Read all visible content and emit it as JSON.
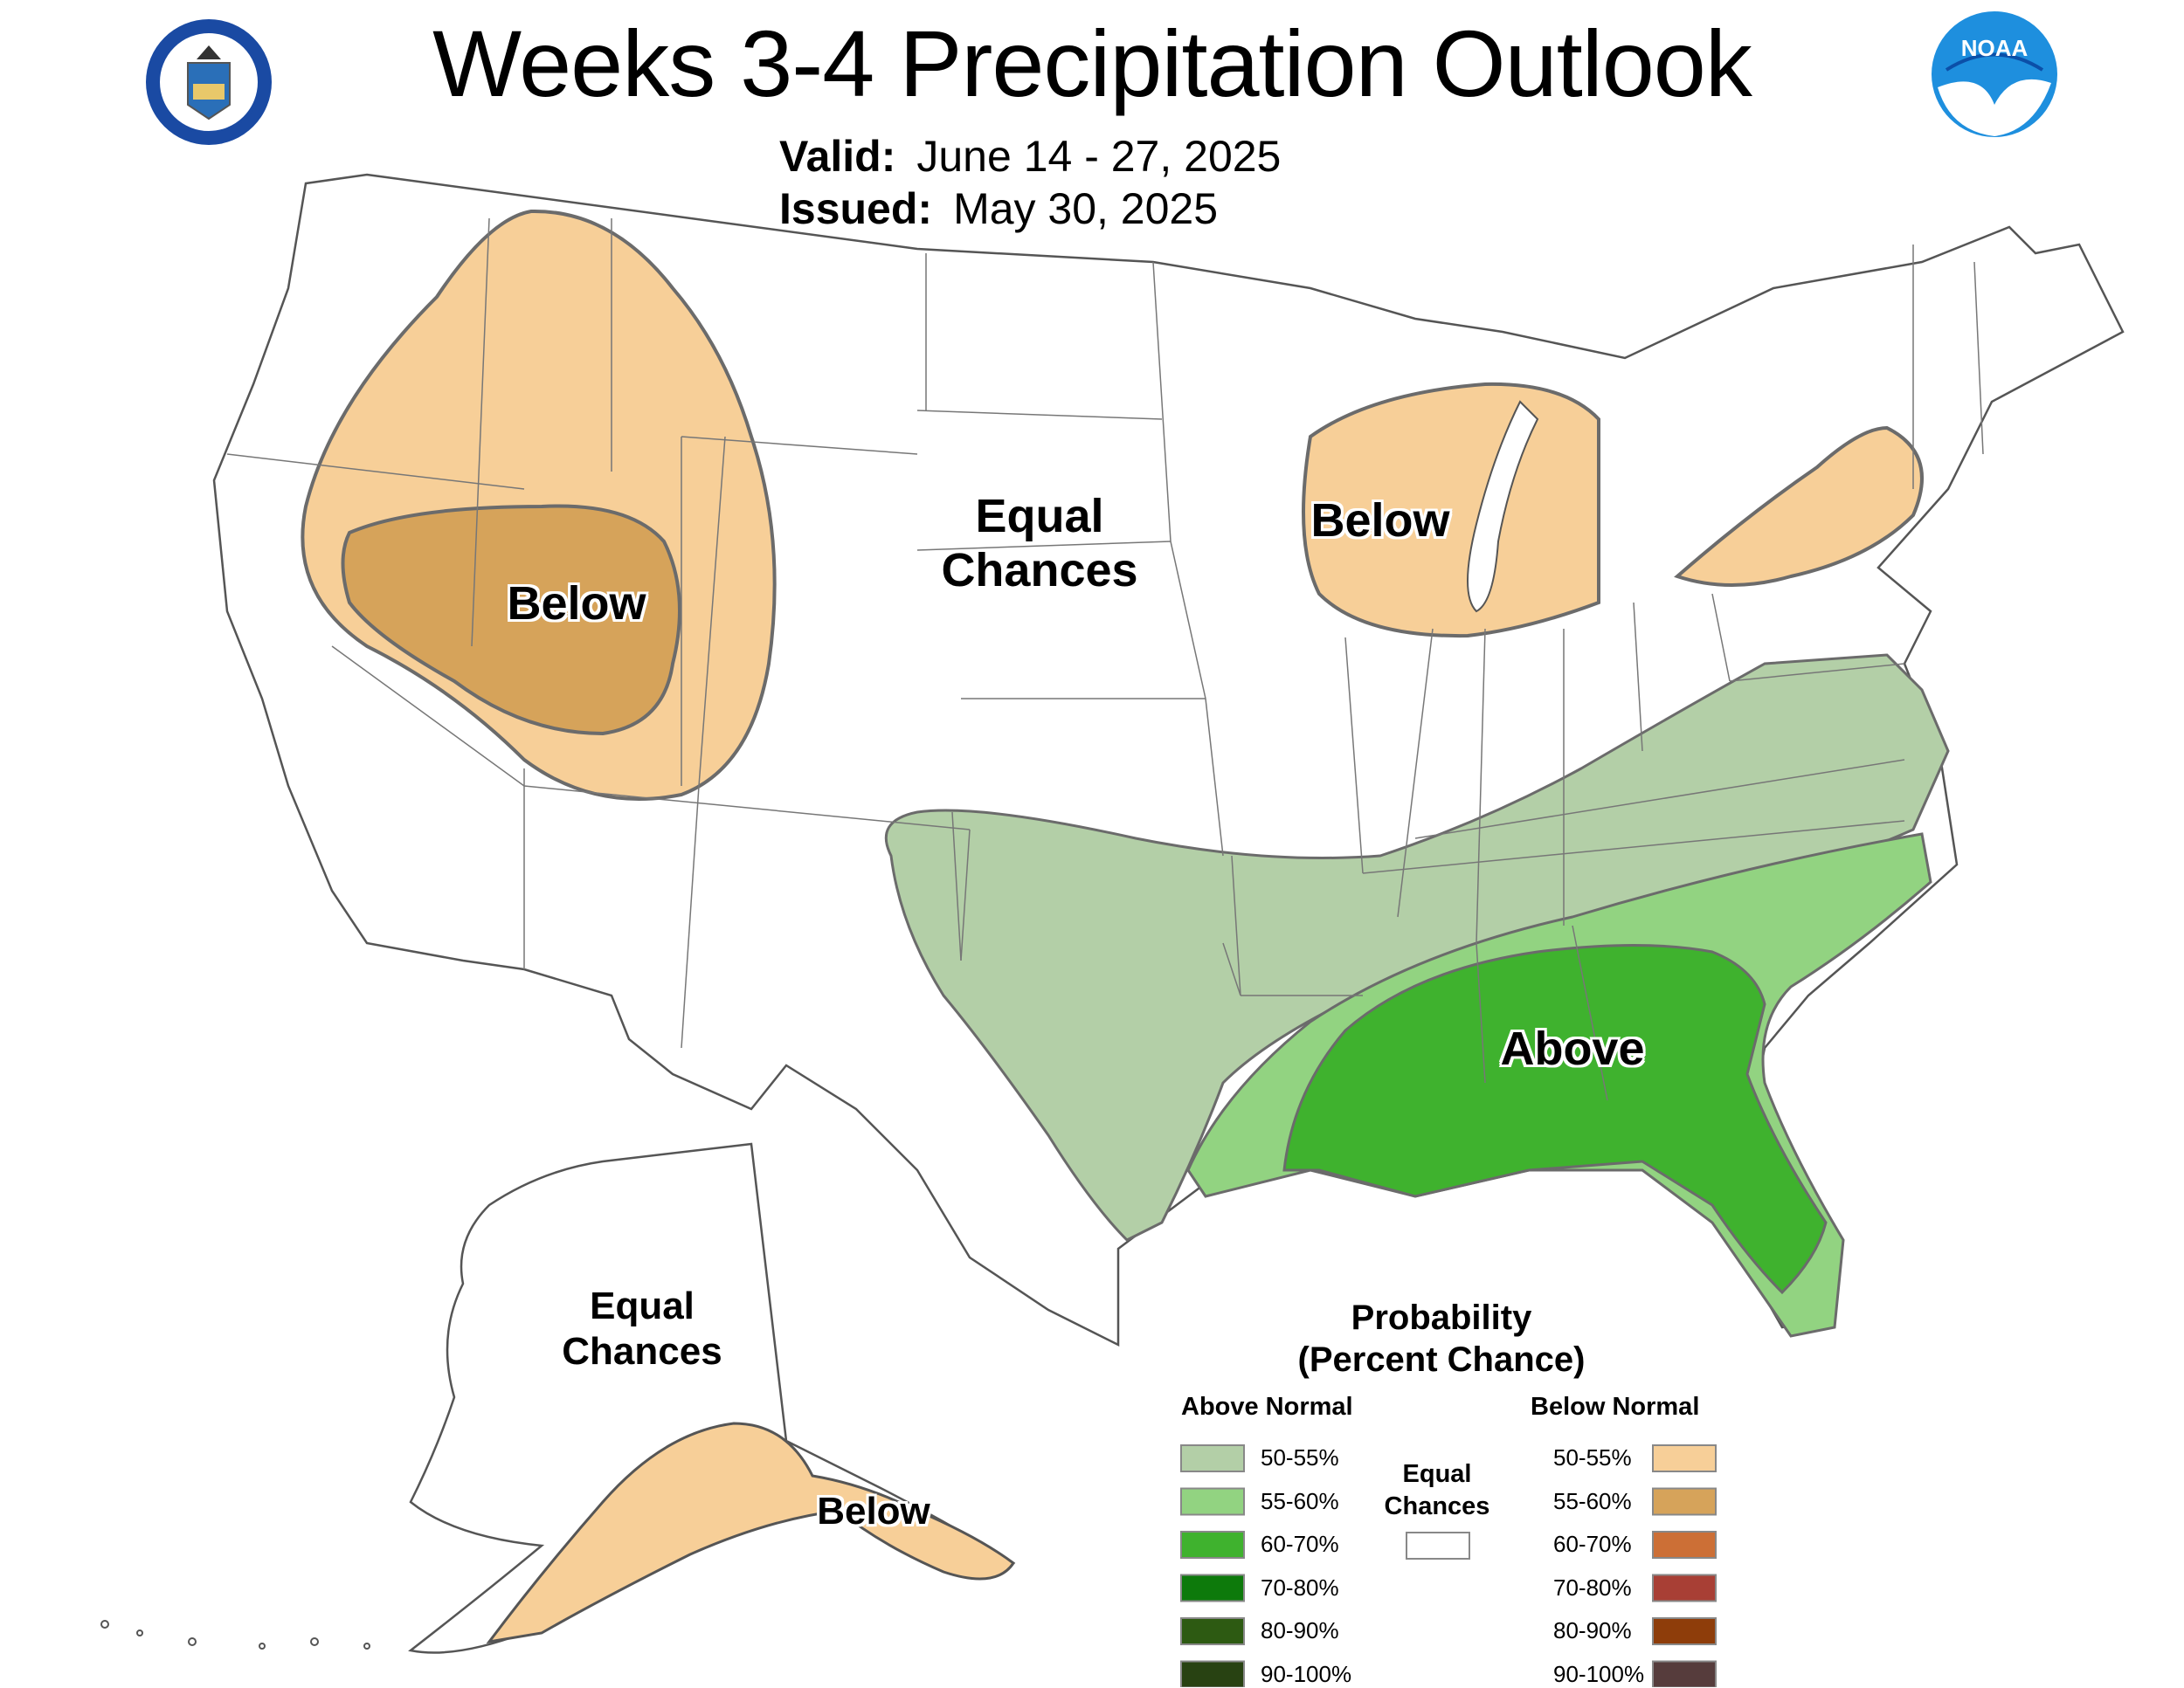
{
  "title": "Weeks 3-4 Precipitation Outlook",
  "valid": {
    "label": "Valid:",
    "value": "June 14 - 27, 2025"
  },
  "issued": {
    "label": "Issued:",
    "value": "May 30, 2025"
  },
  "logos": {
    "left": "department-of-commerce-seal",
    "right": "noaa-logo",
    "noaa_text": "NOAA"
  },
  "regions": {
    "west_below": "Below",
    "central_ec_line1": "Equal",
    "central_ec_line2": "Chances",
    "great_lakes_below": "Below",
    "southeast_above": "Above",
    "alaska_ec_line1": "Equal",
    "alaska_ec_line2": "Chances",
    "alaska_below": "Below"
  },
  "legend": {
    "title_line1": "Probability",
    "title_line2": "(Percent Chance)",
    "above_header": "Above Normal",
    "below_header": "Below Normal",
    "ec_line1": "Equal",
    "ec_line2": "Chances",
    "ec_color": "#ffffff",
    "above": [
      {
        "range": "50-55%",
        "color": "#b3cfa7"
      },
      {
        "range": "55-60%",
        "color": "#92d381"
      },
      {
        "range": "60-70%",
        "color": "#3fb22e"
      },
      {
        "range": "70-80%",
        "color": "#0d7a0b"
      },
      {
        "range": "80-90%",
        "color": "#2d5a12"
      },
      {
        "range": "90-100%",
        "color": "#284212"
      }
    ],
    "below": [
      {
        "range": "50-55%",
        "color": "#f7cf98"
      },
      {
        "range": "55-60%",
        "color": "#d6a35a"
      },
      {
        "range": "60-70%",
        "color": "#cc6f36"
      },
      {
        "range": "70-80%",
        "color": "#a83f35"
      },
      {
        "range": "80-90%",
        "color": "#8e3d0a"
      },
      {
        "range": "90-100%",
        "color": "#563c3c"
      }
    ]
  }
}
